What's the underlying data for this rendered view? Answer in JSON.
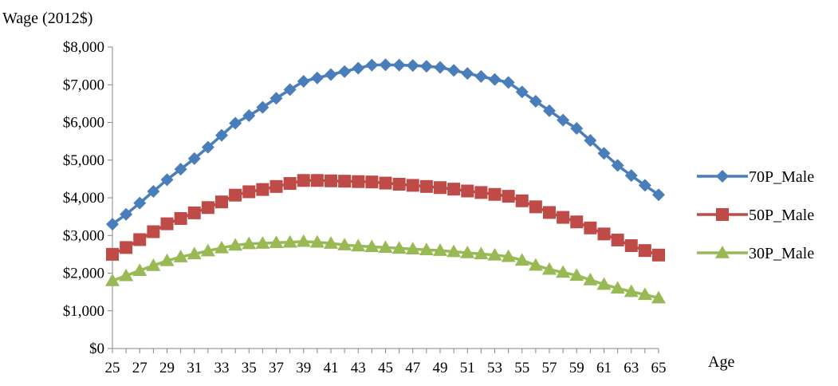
{
  "chart_data": {
    "type": "line",
    "ylabel": "Wage (2012$)",
    "xlabel": "Age",
    "x": [
      25,
      26,
      27,
      28,
      29,
      30,
      31,
      32,
      33,
      34,
      35,
      36,
      37,
      38,
      39,
      40,
      41,
      42,
      43,
      44,
      45,
      46,
      47,
      48,
      49,
      50,
      51,
      52,
      53,
      54,
      55,
      56,
      57,
      58,
      59,
      60,
      61,
      62,
      63,
      64,
      65
    ],
    "x_tick_labels": [
      "25",
      "27",
      "29",
      "31",
      "33",
      "35",
      "37",
      "39",
      "41",
      "43",
      "45",
      "47",
      "49",
      "51",
      "53",
      "55",
      "57",
      "59",
      "61",
      "63",
      "65"
    ],
    "ylim": [
      0,
      8000
    ],
    "y_ticks": [
      0,
      1000,
      2000,
      3000,
      4000,
      5000,
      6000,
      7000,
      8000
    ],
    "y_tick_labels": [
      "$0",
      "$1,000",
      "$2,000",
      "$3,000",
      "$4,000",
      "$5,000",
      "$6,000",
      "$7,000",
      "$8,000"
    ],
    "grid": false,
    "legend_position": "right",
    "series": [
      {
        "name": "70P_Male",
        "color": "#4a7ebb",
        "marker": "diamond",
        "values": [
          3300,
          3560,
          3860,
          4170,
          4480,
          4760,
          5040,
          5340,
          5660,
          5980,
          6180,
          6400,
          6640,
          6870,
          7090,
          7180,
          7270,
          7350,
          7440,
          7520,
          7530,
          7520,
          7510,
          7490,
          7460,
          7380,
          7300,
          7220,
          7140,
          7060,
          6810,
          6560,
          6310,
          6060,
          5840,
          5520,
          5180,
          4860,
          4590,
          4330,
          4080
        ]
      },
      {
        "name": "50P_Male",
        "color": "#be4b48",
        "marker": "square",
        "values": [
          2500,
          2680,
          2890,
          3100,
          3310,
          3450,
          3600,
          3740,
          3890,
          4070,
          4160,
          4220,
          4300,
          4380,
          4460,
          4460,
          4450,
          4440,
          4430,
          4420,
          4390,
          4360,
          4330,
          4300,
          4270,
          4230,
          4180,
          4140,
          4090,
          4040,
          3920,
          3760,
          3610,
          3480,
          3360,
          3200,
          3040,
          2880,
          2730,
          2600,
          2480
        ]
      },
      {
        "name": "30P_Male",
        "color": "#98b954",
        "marker": "triangle",
        "values": [
          1800,
          1930,
          2070,
          2200,
          2330,
          2430,
          2510,
          2590,
          2670,
          2740,
          2780,
          2790,
          2810,
          2820,
          2840,
          2820,
          2790,
          2750,
          2720,
          2700,
          2680,
          2660,
          2640,
          2620,
          2600,
          2570,
          2540,
          2510,
          2480,
          2440,
          2340,
          2210,
          2100,
          2020,
          1940,
          1820,
          1700,
          1600,
          1510,
          1430,
          1340
        ]
      }
    ]
  }
}
